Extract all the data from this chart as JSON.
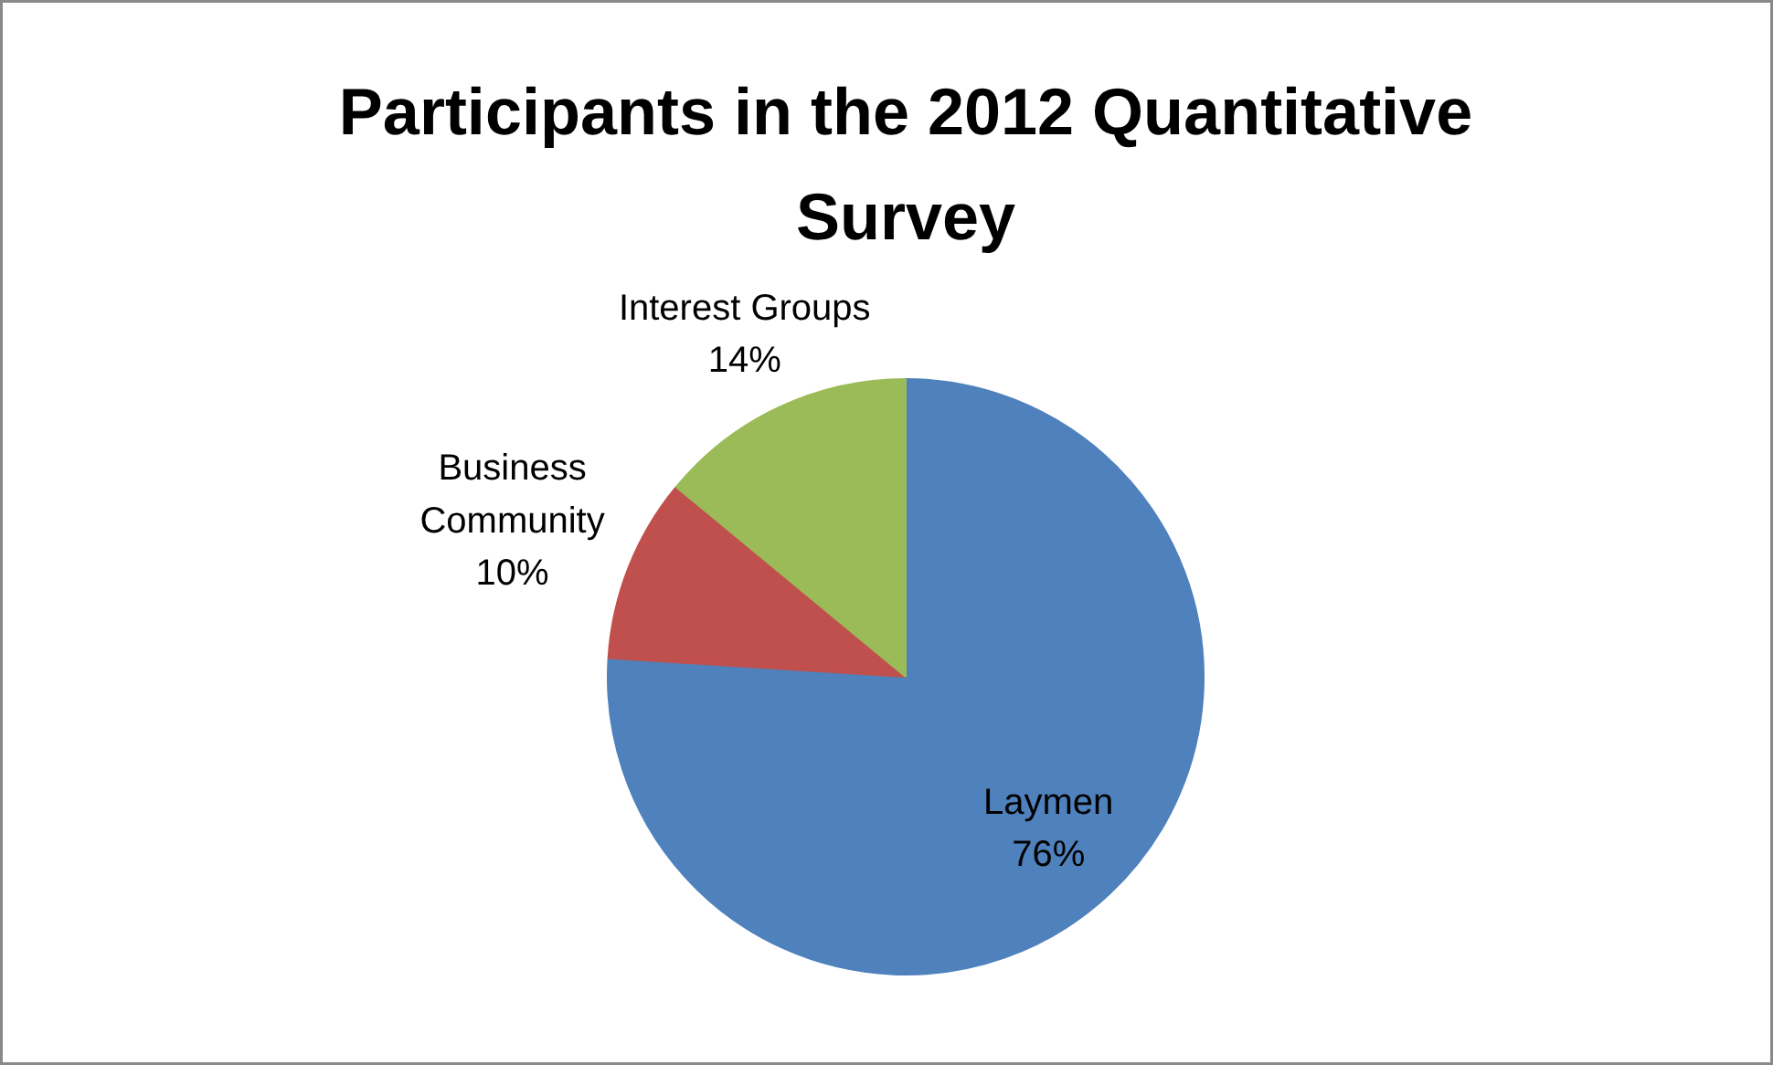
{
  "chart_data": {
    "type": "pie",
    "title": "Participants in the 2012 Quantitative Survey",
    "categories": [
      "Laymen",
      "Business Community",
      "Interest Groups"
    ],
    "values": [
      76,
      10,
      14
    ],
    "value_labels": [
      "76%",
      "10%",
      "14%"
    ],
    "colors": [
      "#4f81bd",
      "#c0504d",
      "#9bbb59"
    ]
  }
}
